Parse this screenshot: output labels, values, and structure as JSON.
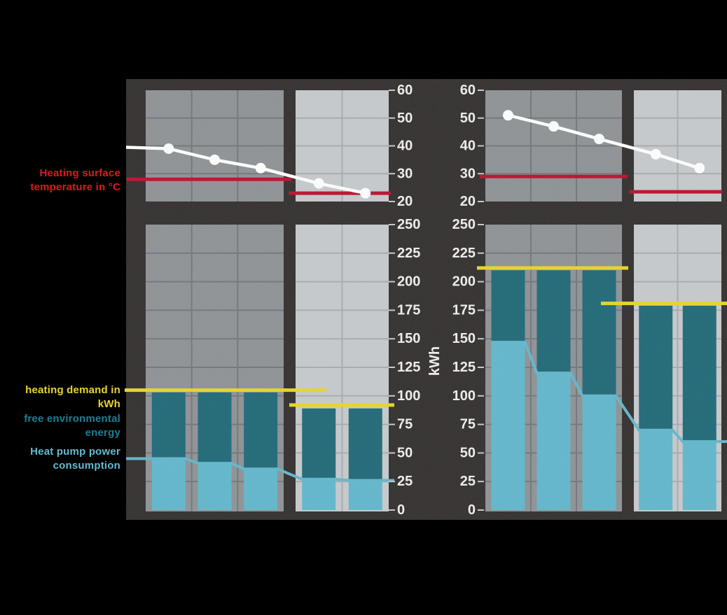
{
  "colors": {
    "background": "#312e2d",
    "panel_dark": "#8e9295",
    "panel_light": "#c6cacc",
    "grid_dark": "#72767a",
    "grid_light": "#a7acaf",
    "bar_teal": "#1f6877",
    "bar_blue": "#61b7cc",
    "yellow": "#e8d626",
    "red_line": "#bb0f2e",
    "white": "#ffffff",
    "tick_text": "#ececec",
    "tick_dash": "#c8c8c8",
    "label_red": "#e31717",
    "label_yellow": "#e8d626",
    "label_teal": "#1d7f96",
    "label_blue": "#64b9ce"
  },
  "legend": {
    "temperature": {
      "line1": "Heating surface",
      "line2": "temperature in °C"
    },
    "demand": {
      "line1": "heating demand in kWh"
    },
    "free_energy": {
      "line1": "free environmental",
      "line2": "energy"
    },
    "consumption": {
      "line1": "Heat pump power",
      "line2": "consumption"
    }
  },
  "axes": {
    "temperature_ticks": [
      60,
      50,
      40,
      30,
      20
    ],
    "energy_ticks": [
      250,
      225,
      200,
      175,
      150,
      125,
      100,
      75,
      50,
      25,
      0
    ],
    "unit_label": "kWh"
  },
  "chart_data": [
    {
      "id": "left-chart",
      "temperature": {
        "type": "line",
        "ylim": [
          20,
          60
        ],
        "points": [
          39,
          35,
          32,
          26.5,
          23
        ],
        "lead_in_value": 39.5,
        "heating_surface_line": {
          "dark_panel": 28,
          "light_panel": 23
        }
      },
      "energy": {
        "type": "stacked-bar",
        "ylim": [
          0,
          250
        ],
        "ylabel": "kWh",
        "totals": [
          103,
          103,
          103,
          89,
          89
        ],
        "consumption": [
          45,
          41,
          36,
          27,
          26
        ],
        "heating_demand_line": {
          "dark_panel": 105,
          "light_panel": 92
        }
      }
    },
    {
      "id": "right-chart",
      "temperature": {
        "type": "line",
        "ylim": [
          20,
          60
        ],
        "points": [
          51,
          47,
          42.5,
          37,
          32
        ],
        "lead_in_value": null,
        "heating_surface_line": {
          "dark_panel": 29,
          "light_panel": 23.5
        }
      },
      "energy": {
        "type": "stacked-bar",
        "ylim": [
          0,
          250
        ],
        "ylabel": "kWh",
        "totals": [
          210,
          210,
          210,
          179,
          179
        ],
        "consumption": [
          147,
          120,
          100,
          70,
          60
        ],
        "heating_demand_line": {
          "dark_panel": 212,
          "light_panel": 181
        }
      }
    }
  ]
}
